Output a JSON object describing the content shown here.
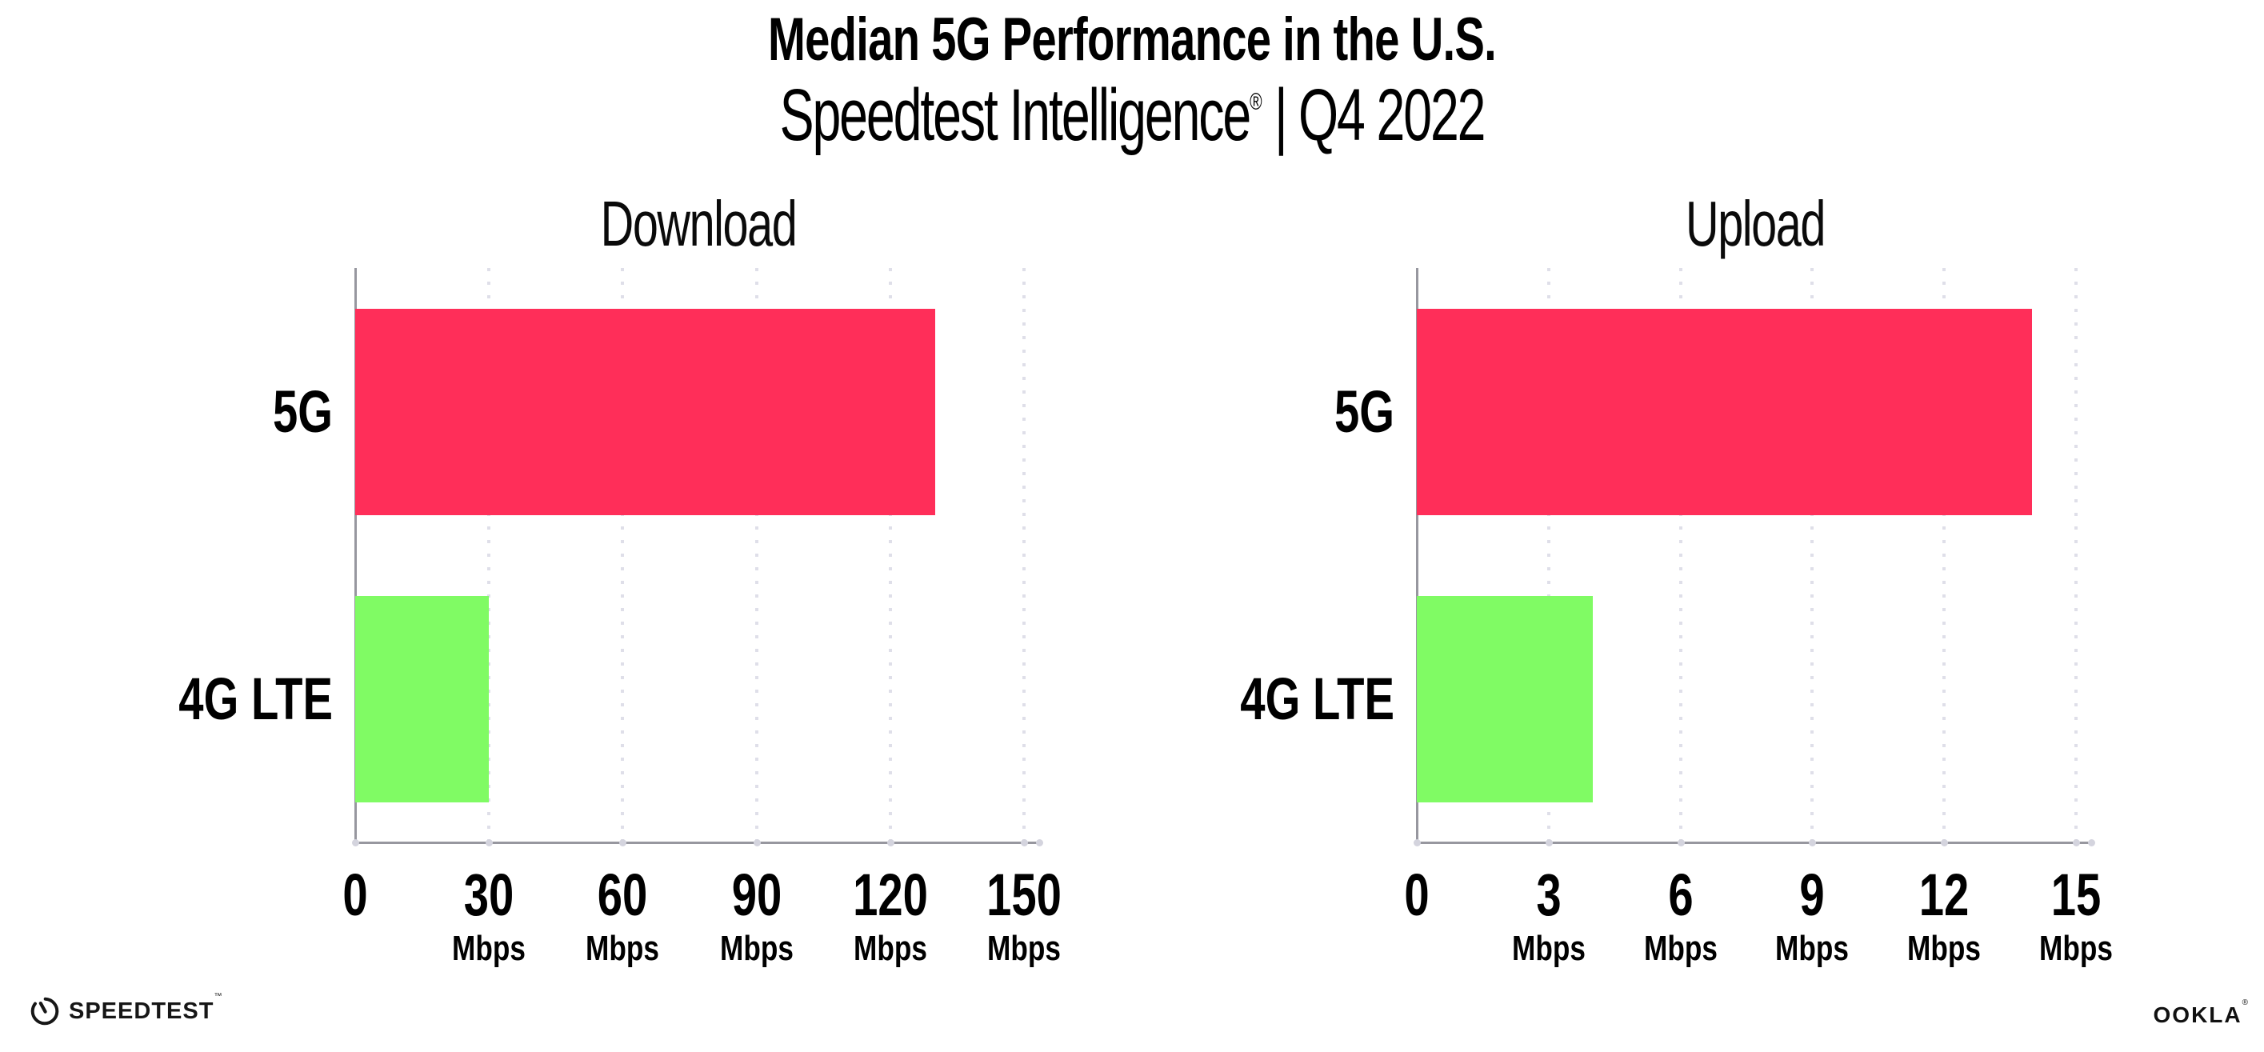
{
  "header": {
    "title": "Median 5G Performance in the U.S.",
    "subtitle": {
      "brand": "Speedtest Intelligence",
      "registered": "®",
      "separator": "|",
      "period": "Q4 2022"
    }
  },
  "chart_data": [
    {
      "type": "bar",
      "orientation": "horizontal",
      "title": "Download",
      "categories": [
        "5G",
        "4G LTE"
      ],
      "values": [
        130,
        30
      ],
      "value_unit": "Mbps",
      "xlim": [
        0,
        150
      ],
      "xticks": [
        0,
        30,
        60,
        90,
        120,
        150
      ],
      "tick_unit": "Mbps",
      "grid": "dotted-vertical",
      "legend": "none",
      "bar_colors": [
        "#ff2e59",
        "#80fb64"
      ]
    },
    {
      "type": "bar",
      "orientation": "horizontal",
      "title": "Upload",
      "categories": [
        "5G",
        "4G LTE"
      ],
      "values": [
        14,
        4
      ],
      "value_unit": "Mbps",
      "xlim": [
        0,
        15
      ],
      "xticks": [
        0,
        3,
        6,
        9,
        12,
        15
      ],
      "tick_unit": "Mbps",
      "grid": "dotted-vertical",
      "legend": "none",
      "bar_colors": [
        "#ff2e59",
        "#80fb64"
      ]
    }
  ],
  "footer": {
    "speedtest": "SPEEDTEST",
    "speedtest_mark": "™",
    "ookla": "OOKLA",
    "ookla_mark": "®"
  },
  "colors": {
    "bar_5g": "#ff2e59",
    "bar_4g_lte": "#80fb64",
    "axis": "#97979f",
    "gridline": "#dfdfe9",
    "tick_dot": "#d4d4de",
    "text": "#000000"
  }
}
